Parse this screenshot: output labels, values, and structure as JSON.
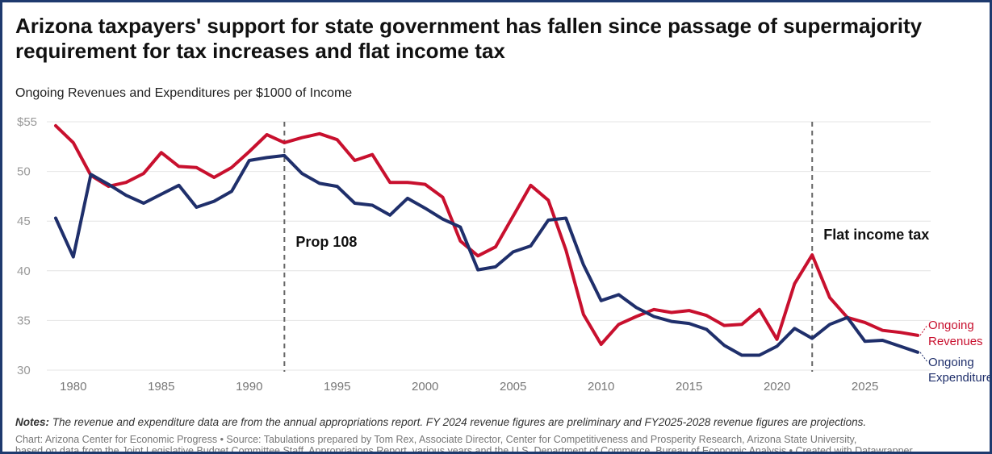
{
  "title": "Arizona taxpayers' support for state government has fallen since passage of supermajority requirement for tax increases and flat income tax",
  "subtitle": "Ongoing Revenues and Expenditures per $1000 of Income",
  "notes_label": "Notes:",
  "notes_text": "The revenue and expenditure data are from the annual appropriations report. FY 2024 revenue figures are preliminary and FY2025-2028 revenue figures are projections.",
  "source_line1": "Chart: Arizona Center for Economic Progress • Source: Tabulations prepared by Tom Rex, Associate Director, Center for Competitiveness and Prosperity Research, Arizona State University,",
  "source_line2": "based on data from the Joint Legislative Budget Committee Staff, Appropriations Report, various years and the U.S. Department of Commerce, Bureau of Economic Analysis • Created with Datawrapper",
  "colors": {
    "revenues": "#c8102e",
    "expenditures": "#1f2f6b",
    "grid": "#e4e4e4",
    "annotation_line": "#666666"
  },
  "chart_data": {
    "type": "line",
    "title": "Arizona taxpayers' support for state government has fallen since passage of supermajority requirement for tax increases and flat income tax",
    "subtitle": "Ongoing Revenues and Expenditures per $1000 of Income",
    "xlabel": "",
    "ylabel": "",
    "xlim": [
      1979,
      2028
    ],
    "ylim": [
      30,
      55
    ],
    "y_ticks": [
      30,
      35,
      40,
      45,
      50,
      55
    ],
    "y_tick_labels": [
      "30",
      "35",
      "40",
      "45",
      "50",
      "$55"
    ],
    "x_ticks": [
      1980,
      1985,
      1990,
      1995,
      2000,
      2005,
      2010,
      2015,
      2020,
      2025
    ],
    "x_tick_labels": [
      "1980",
      "1985",
      "1990",
      "1995",
      "2000",
      "2005",
      "2010",
      "2015",
      "2020",
      "2025"
    ],
    "grid": true,
    "legend": "inline labels at right end of lines",
    "x": [
      1979,
      1980,
      1981,
      1982,
      1983,
      1984,
      1985,
      1986,
      1987,
      1988,
      1989,
      1990,
      1991,
      1992,
      1993,
      1994,
      1995,
      1996,
      1997,
      1998,
      1999,
      2000,
      2001,
      2002,
      2003,
      2004,
      2005,
      2006,
      2007,
      2008,
      2009,
      2010,
      2011,
      2012,
      2013,
      2014,
      2015,
      2016,
      2017,
      2018,
      2019,
      2020,
      2021,
      2022,
      2023,
      2024,
      2025,
      2026,
      2027,
      2028
    ],
    "series": [
      {
        "name": "Ongoing Revenues",
        "label_lines": [
          "Ongoing",
          "Revenues"
        ],
        "values": [
          54.6,
          52.9,
          49.6,
          48.5,
          48.9,
          49.8,
          51.9,
          50.5,
          50.4,
          49.4,
          50.4,
          52.0,
          53.7,
          52.9,
          53.4,
          53.8,
          53.2,
          51.1,
          51.7,
          48.9,
          48.9,
          48.7,
          47.4,
          43.0,
          41.5,
          42.4,
          45.5,
          48.6,
          47.1,
          42.1,
          35.6,
          32.6,
          34.6,
          35.4,
          36.1,
          35.8,
          36.0,
          35.5,
          34.5,
          34.6,
          36.1,
          33.1,
          38.7,
          41.6,
          37.3,
          35.3,
          34.8,
          34.0,
          33.8,
          33.5
        ]
      },
      {
        "name": "Ongoing Expenditures",
        "label_lines": [
          "Ongoing",
          "Expenditures"
        ],
        "values": [
          45.3,
          41.4,
          49.7,
          48.7,
          47.6,
          46.8,
          47.7,
          48.6,
          46.4,
          47.0,
          48.0,
          51.1,
          51.4,
          51.6,
          49.8,
          48.8,
          48.5,
          46.8,
          46.6,
          45.6,
          47.3,
          46.3,
          45.2,
          44.4,
          40.1,
          40.4,
          41.9,
          42.5,
          45.1,
          45.3,
          40.6,
          37.0,
          37.6,
          36.3,
          35.4,
          34.9,
          34.7,
          34.1,
          32.5,
          31.5,
          31.5,
          32.4,
          34.2,
          33.2,
          34.6,
          35.3,
          32.9,
          33.0,
          32.4,
          31.8
        ]
      }
    ],
    "annotations": [
      {
        "year": 1992,
        "label": "Prop 108"
      },
      {
        "year": 2022,
        "label": "Flat income tax"
      }
    ]
  }
}
